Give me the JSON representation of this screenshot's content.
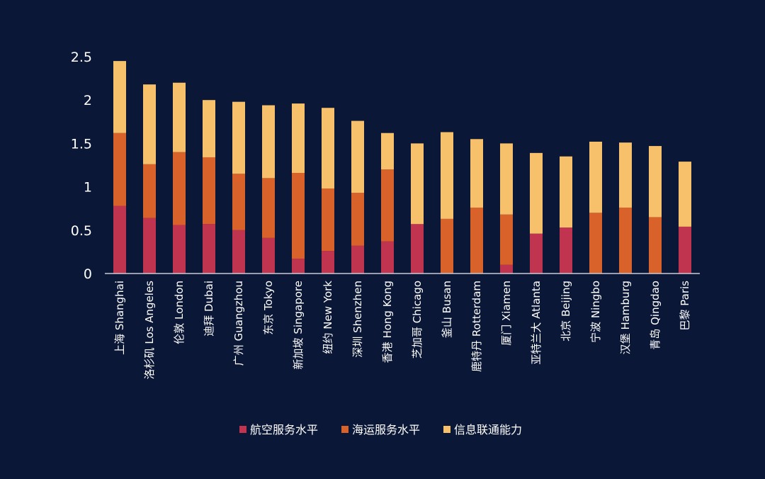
{
  "colors": {
    "background": "#0b1736",
    "axis": "#c8cbd6",
    "air": "#c0344f",
    "sea": "#d9622a",
    "info": "#f7c06b"
  },
  "chart_data": {
    "type": "bar",
    "stacked": true,
    "title": "",
    "xlabel": "",
    "ylabel": "",
    "ylim": [
      0,
      2.5
    ],
    "yticks": [
      "0",
      "0.5",
      "1",
      "1.5",
      "2",
      "2.5"
    ],
    "ytick_values": [
      0,
      0.5,
      1,
      1.5,
      2,
      2.5
    ],
    "grid": false,
    "legend_position": "bottom",
    "categories": [
      "上海 Shanghai",
      "洛杉矶 Los Angeles",
      "伦敦 London",
      "迪拜 Dubai",
      "广州 Guangzhou",
      "东京 Tokyo",
      "新加坡 Singapore",
      "纽约 New York",
      "深圳 Shenzhen",
      "香港 Hong Kong",
      "芝加哥 Chicago",
      "釜山 Busan",
      "鹿特丹 Rotterdam",
      "厦门 Xiamen",
      "亚特兰大 Atlanta",
      "北京 Beijing",
      "宁波 Ningbo",
      "汉堡 Hamburg",
      "青岛 Qingdao",
      "巴黎 Paris"
    ],
    "series": [
      {
        "name": "航空服务水平",
        "color_key": "air",
        "values": [
          0.78,
          0.64,
          0.56,
          0.57,
          0.5,
          0.41,
          0.17,
          0.26,
          0.32,
          0.37,
          0.57,
          0,
          0,
          0.1,
          0.46,
          0.53,
          0,
          0,
          0,
          0.54
        ]
      },
      {
        "name": "海运服务水平",
        "color_key": "sea",
        "values": [
          0.84,
          0.62,
          0.84,
          0.77,
          0.65,
          0.69,
          0.99,
          0.72,
          0.61,
          0.83,
          0,
          0.63,
          0.76,
          0.58,
          0,
          0,
          0.7,
          0.76,
          0.65,
          0
        ]
      },
      {
        "name": "信息联通能力",
        "color_key": "info",
        "values": [
          0.83,
          0.92,
          0.8,
          0.66,
          0.83,
          0.84,
          0.8,
          0.93,
          0.83,
          0.42,
          0.93,
          1.0,
          0.79,
          0.82,
          0.93,
          0.82,
          0.82,
          0.75,
          0.82,
          0.75
        ]
      }
    ]
  }
}
